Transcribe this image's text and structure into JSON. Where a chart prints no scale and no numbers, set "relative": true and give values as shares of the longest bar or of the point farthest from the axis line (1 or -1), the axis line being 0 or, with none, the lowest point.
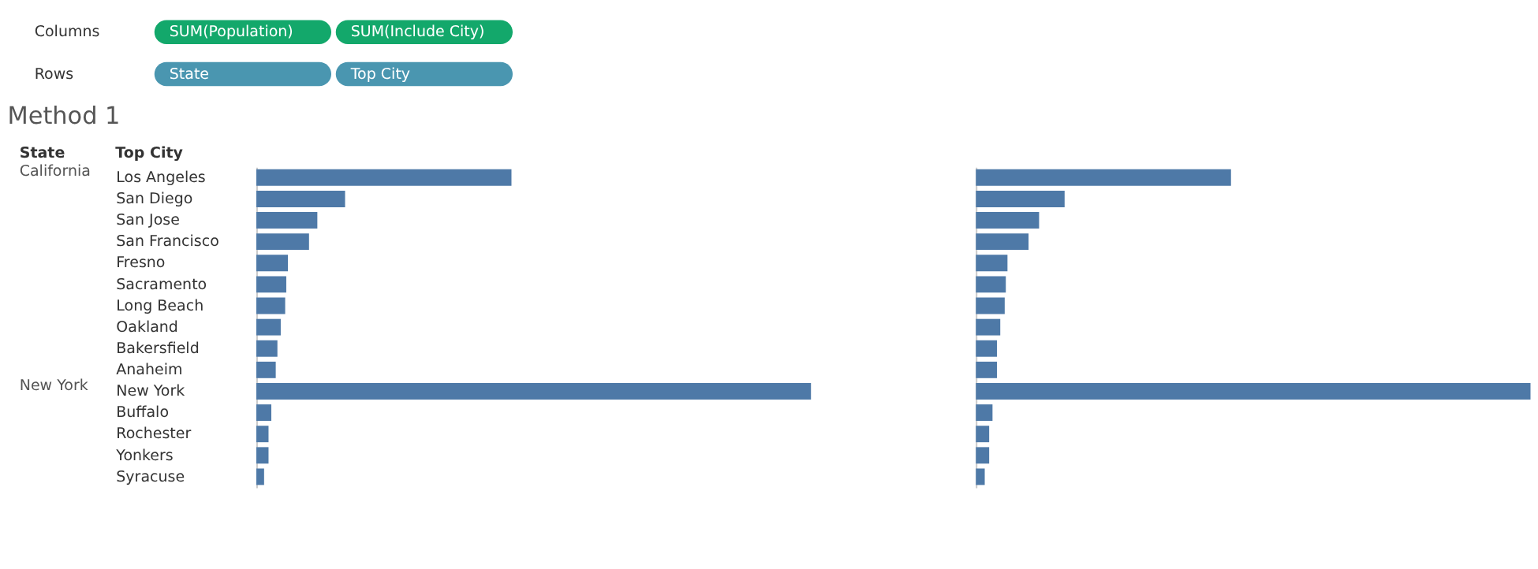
{
  "chart_data": [
    {
      "type": "bar",
      "orientation": "horizontal",
      "relative": true,
      "title": "Method 1",
      "ylabel": "Top City",
      "color": "#4e79a7",
      "categories": [
        "Los Angeles",
        "San Diego",
        "San Jose",
        "San Francisco",
        "Fresno",
        "Sacramento",
        "Long Beach",
        "Oakland",
        "Bakersfield",
        "Anaheim",
        "New York",
        "Buffalo",
        "Rochester",
        "Yonkers",
        "Syracuse"
      ],
      "values": [
        0.46,
        0.16,
        0.11,
        0.095,
        0.057,
        0.054,
        0.052,
        0.044,
        0.038,
        0.035,
        1,
        0.027,
        0.022,
        0.022,
        0.014
      ],
      "annotations": [
        "Columns",
        "SUM(Population)",
        "SUM(Include City)",
        "Rows",
        "State",
        "Top City",
        "State",
        "California",
        "New York"
      ]
    },
    {
      "type": "bar",
      "orientation": "horizontal",
      "relative": true,
      "color": "#4e79a7",
      "categories": [
        null,
        null,
        null,
        null,
        null,
        null,
        null,
        null,
        null,
        null,
        null,
        null,
        null,
        null,
        null
      ],
      "values": [
        0.46,
        0.16,
        0.114,
        0.095,
        0.057,
        0.054,
        0.052,
        0.044,
        0.038,
        0.038,
        1,
        0.03,
        0.024,
        0.024,
        0.016
      ]
    }
  ]
}
